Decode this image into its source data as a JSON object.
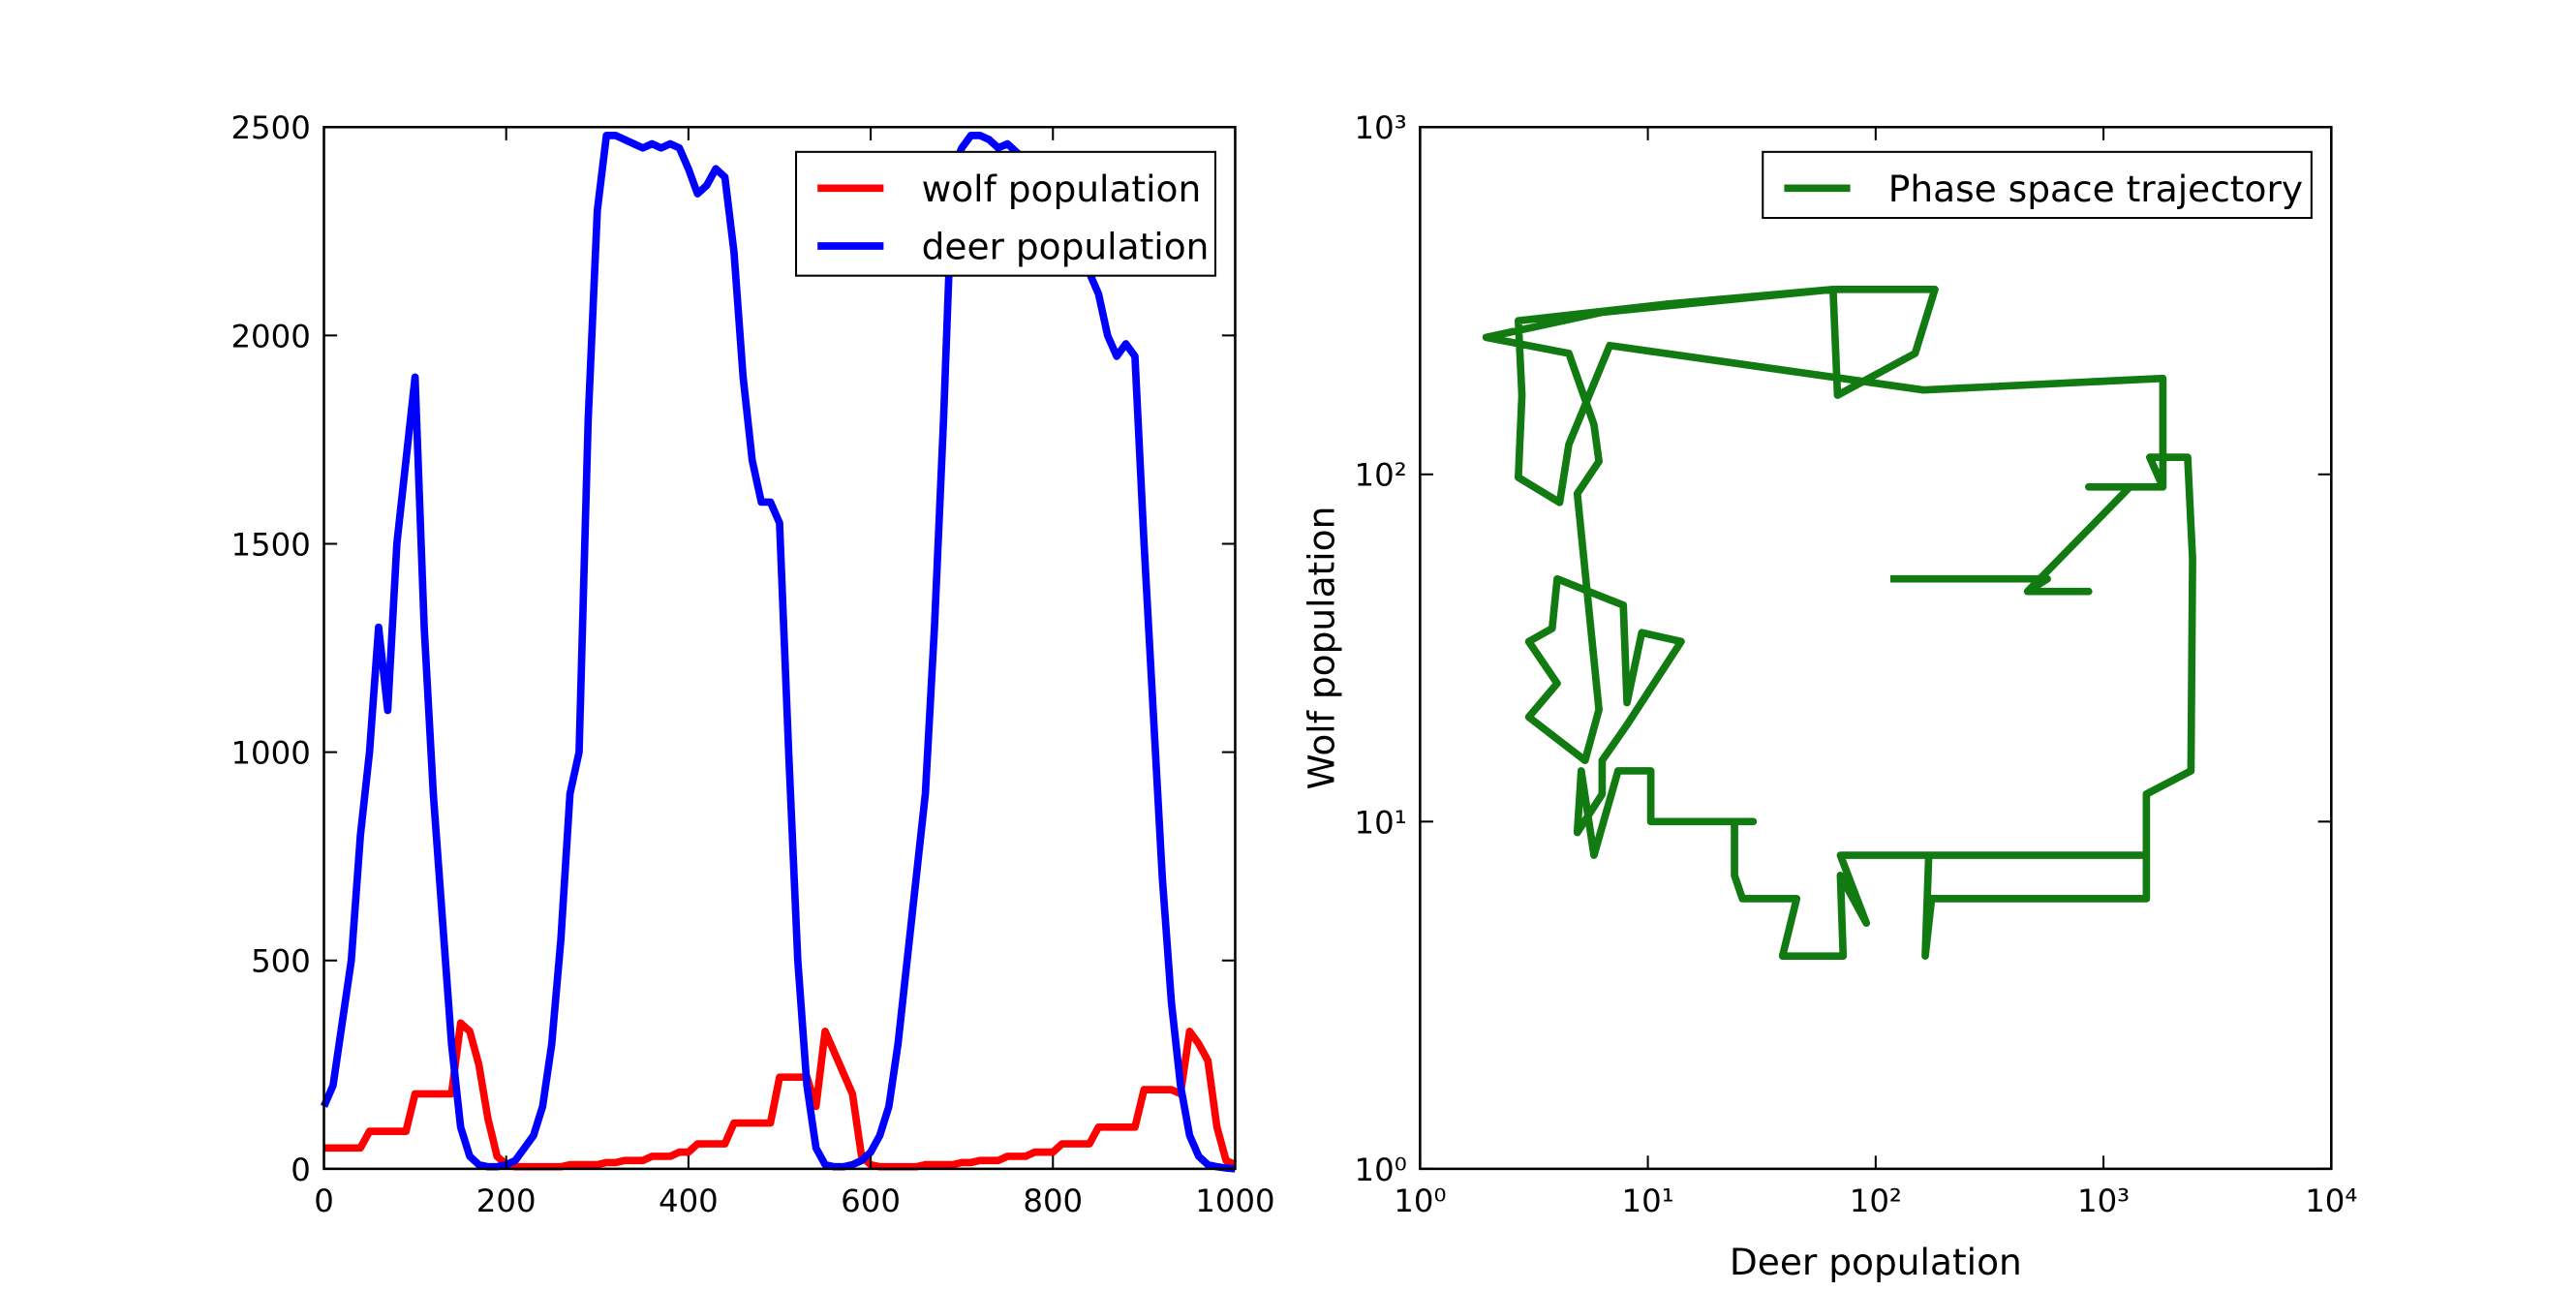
{
  "chart_data": [
    {
      "type": "line",
      "x": [
        0,
        10,
        20,
        30,
        40,
        50,
        60,
        70,
        80,
        90,
        100,
        110,
        120,
        130,
        140,
        150,
        160,
        170,
        180,
        190,
        200,
        210,
        220,
        230,
        240,
        250,
        260,
        270,
        280,
        290,
        300,
        310,
        320,
        330,
        340,
        350,
        360,
        370,
        380,
        390,
        400,
        410,
        420,
        430,
        440,
        450,
        460,
        470,
        480,
        490,
        500,
        510,
        520,
        530,
        540,
        550,
        560,
        570,
        580,
        590,
        600,
        610,
        620,
        630,
        640,
        650,
        660,
        670,
        680,
        690,
        700,
        710,
        720,
        730,
        740,
        750,
        760,
        770,
        780,
        790,
        800,
        810,
        820,
        830,
        840,
        850,
        860,
        870,
        880,
        890,
        900,
        910,
        920,
        930,
        940,
        950,
        960,
        970,
        980,
        990,
        1000
      ],
      "series": [
        {
          "name": "wolf population",
          "color": "#ff0000",
          "values": [
            50,
            50,
            50,
            50,
            50,
            90,
            90,
            90,
            90,
            90,
            180,
            180,
            180,
            180,
            180,
            350,
            330,
            250,
            120,
            30,
            10,
            5,
            5,
            5,
            5,
            5,
            5,
            10,
            10,
            10,
            10,
            15,
            15,
            20,
            20,
            20,
            30,
            30,
            30,
            40,
            40,
            60,
            60,
            60,
            60,
            110,
            110,
            110,
            110,
            110,
            220,
            220,
            220,
            220,
            150,
            330,
            280,
            230,
            180,
            30,
            10,
            5,
            5,
            5,
            5,
            5,
            10,
            10,
            10,
            10,
            15,
            15,
            20,
            20,
            20,
            30,
            30,
            30,
            40,
            40,
            40,
            60,
            60,
            60,
            60,
            100,
            100,
            100,
            100,
            100,
            190,
            190,
            190,
            190,
            180,
            330,
            300,
            260,
            100,
            20,
            10
          ]
        },
        {
          "name": "deer population",
          "color": "#0000ff",
          "values": [
            150,
            200,
            350,
            500,
            800,
            1000,
            1300,
            1100,
            1500,
            1700,
            1900,
            1300,
            900,
            600,
            300,
            100,
            30,
            10,
            5,
            5,
            10,
            20,
            50,
            80,
            150,
            300,
            550,
            900,
            1000,
            1800,
            2300,
            2480,
            2480,
            2470,
            2460,
            2450,
            2460,
            2450,
            2460,
            2450,
            2400,
            2340,
            2360,
            2400,
            2380,
            2200,
            1900,
            1700,
            1600,
            1600,
            1550,
            1000,
            500,
            200,
            50,
            10,
            5,
            5,
            10,
            20,
            40,
            80,
            150,
            300,
            500,
            700,
            900,
            1300,
            1800,
            2400,
            2450,
            2480,
            2480,
            2470,
            2450,
            2460,
            2440,
            2420,
            2430,
            2420,
            2400,
            2300,
            2250,
            2200,
            2150,
            2100,
            2000,
            1950,
            1980,
            1950,
            1500,
            1100,
            700,
            400,
            200,
            80,
            30,
            10,
            5,
            2,
            0
          ]
        }
      ],
      "xlim": [
        0,
        1000
      ],
      "ylim": [
        0,
        2500
      ],
      "xticks": [
        0,
        200,
        400,
        600,
        800,
        1000
      ],
      "yticks": [
        0,
        500,
        1000,
        1500,
        2000,
        2500
      ],
      "legend": "upper right"
    },
    {
      "type": "line",
      "xscale": "log",
      "yscale": "log",
      "xlabel": "Deer population",
      "ylabel": "Wolf population",
      "series": [
        {
          "name": "Phase space trajectory",
          "color": "#117a11",
          "x": [
            116,
            567,
            464,
            861,
            464,
            1306,
            861,
            1823,
            1596,
            2342,
            2461,
            2421,
            1543,
            1543,
            176,
            165,
            171,
            1543,
            70,
            91,
            70,
            72,
            39,
            45,
            26,
            24,
            24,
            29,
            10.3,
            10.3,
            7.4,
            5.8,
            5.1,
            4.9,
            6.3,
            6.3,
            8.1,
            14,
            9.4,
            8.1,
            7.8,
            4.0,
            3.8,
            3.0,
            4.0,
            3.0,
            5.3,
            6.1,
            4.9,
            6.1,
            5.8,
            4.5,
            1.95,
            6.3,
            65,
            182,
            149,
            68,
            65,
            12,
            2.7,
            2.8,
            2.7,
            4.1,
            4.5,
            6.8,
            162,
            1823,
            1823
          ],
          "values": [
            50,
            50,
            46,
            46,
            46,
            92,
            92,
            92,
            112,
            112,
            57,
            14,
            12,
            6.0,
            6.0,
            4.1,
            8.0,
            8.0,
            8.0,
            5.1,
            7.0,
            4.1,
            4.1,
            6.0,
            6.0,
            7.0,
            10,
            10,
            10,
            14,
            14,
            8.0,
            14,
            9.3,
            12,
            15,
            19,
            33,
            35,
            22,
            42,
            50,
            36,
            33,
            25,
            20,
            15,
            21,
            88,
            109,
            139,
            223,
            248,
            293,
            341,
            341,
            223,
            169,
            341,
            309,
            277,
            169,
            98,
            83,
            122,
            235,
            175,
            189,
            92
          ]
        }
      ],
      "xlim": [
        1,
        10000
      ],
      "ylim": [
        1,
        1000
      ],
      "xticks": [
        {
          "value": 1,
          "label": "10⁰"
        },
        {
          "value": 10,
          "label": "10¹"
        },
        {
          "value": 100,
          "label": "10²"
        },
        {
          "value": 1000,
          "label": "10³"
        },
        {
          "value": 10000,
          "label": "10⁴"
        }
      ],
      "yticks": [
        {
          "value": 1,
          "label": "10⁰"
        },
        {
          "value": 10,
          "label": "10¹"
        },
        {
          "value": 100,
          "label": "10²"
        },
        {
          "value": 1000,
          "label": "10³"
        }
      ],
      "legend": "upper right"
    }
  ]
}
